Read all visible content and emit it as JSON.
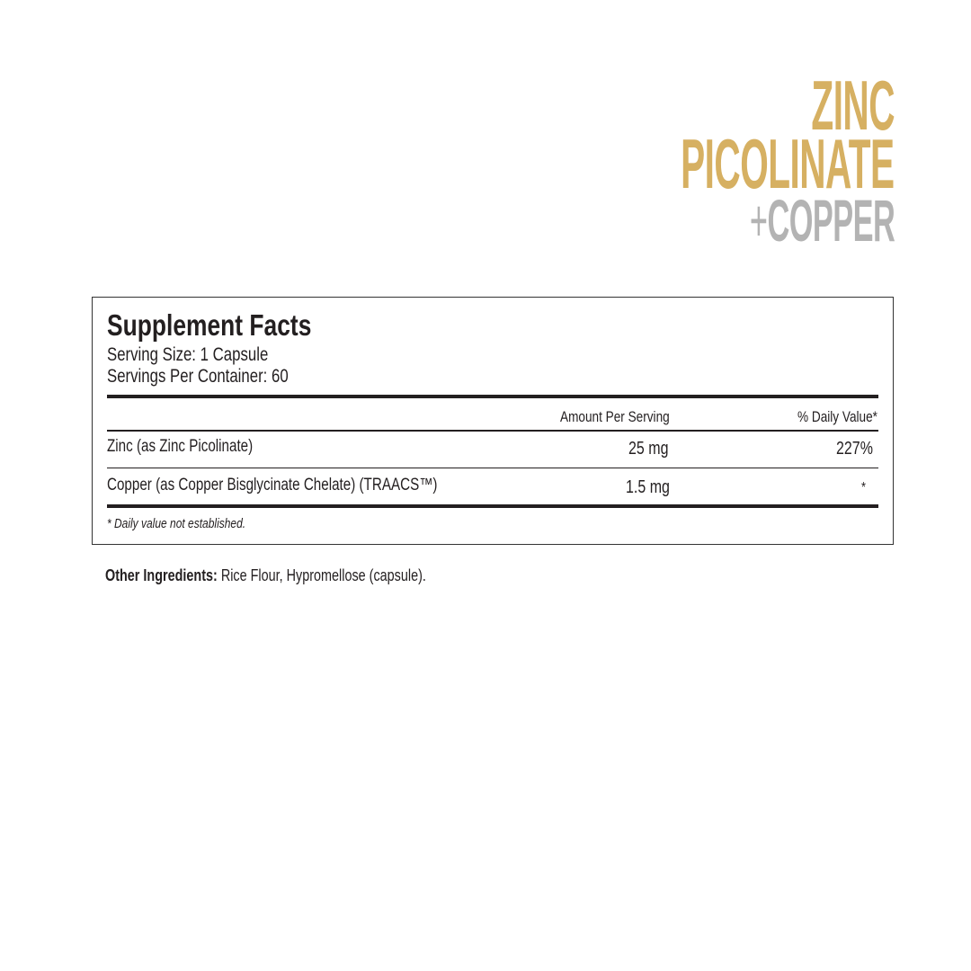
{
  "brand": {
    "line1": "ZINC",
    "line2": "PICOLINATE",
    "plus": "+",
    "line3": "COPPER",
    "colors": {
      "gold": "#d6b062",
      "gray": "#b3b3b3"
    }
  },
  "facts": {
    "title": "Supplement Facts",
    "serving_size": "Serving Size: 1 Capsule",
    "servings_per_container": "Servings Per Container: 60",
    "headers": {
      "amount": "Amount Per Serving",
      "dv": "% Daily Value*"
    },
    "rows": [
      {
        "name": "Zinc (as Zinc Picolinate)",
        "amount": "25 mg",
        "dv": "227%"
      },
      {
        "name": "Copper  (as Copper Bisglycinate Chelate) (TRAACS™)",
        "amount": "1.5 mg",
        "dv": "*"
      }
    ],
    "footnote": "* Daily value not established."
  },
  "other": {
    "label": "Other Ingredients:",
    "text": " Rice Flour, Hypromellose (capsule)."
  }
}
